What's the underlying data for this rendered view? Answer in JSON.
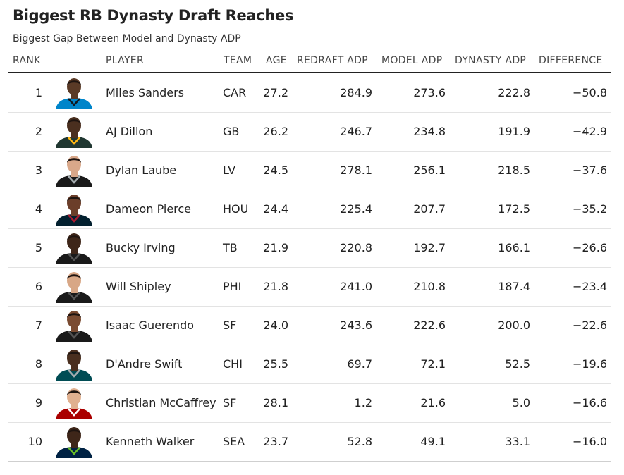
{
  "chart_data": {
    "type": "table",
    "title": "Biggest RB Dynasty Draft Reaches",
    "subtitle": "Biggest Gap Between Model and Dynasty ADP",
    "columns": [
      "RANK",
      "PLAYER",
      "TEAM",
      "AGE",
      "REDRAFT ADP",
      "MODEL ADP",
      "DYNASTY ADP",
      "DIFFERENCE"
    ],
    "rows": [
      {
        "rank": "1",
        "player": "Miles Sanders",
        "team": "CAR",
        "age": "27.2",
        "redraft_adp": "284.9",
        "model_adp": "273.6",
        "dynasty_adp": "222.8",
        "difference": "−50.8",
        "jersey_color": "#0085CA",
        "accent_color": "#101820",
        "skin_color": "#5a3a26"
      },
      {
        "rank": "2",
        "player": "AJ Dillon",
        "team": "GB",
        "age": "26.2",
        "redraft_adp": "246.7",
        "model_adp": "234.8",
        "dynasty_adp": "191.9",
        "difference": "−42.9",
        "jersey_color": "#203731",
        "accent_color": "#FFB612",
        "skin_color": "#4a2f1f"
      },
      {
        "rank": "3",
        "player": "Dylan Laube",
        "team": "LV",
        "age": "24.5",
        "redraft_adp": "278.1",
        "model_adp": "256.1",
        "dynasty_adp": "218.5",
        "difference": "−37.6",
        "jersey_color": "#1a1a1a",
        "accent_color": "#A5ACAF",
        "skin_color": "#d9a88a"
      },
      {
        "rank": "4",
        "player": "Dameon Pierce",
        "team": "HOU",
        "age": "24.4",
        "redraft_adp": "225.4",
        "model_adp": "207.7",
        "dynasty_adp": "172.5",
        "difference": "−35.2",
        "jersey_color": "#03202F",
        "accent_color": "#A71930",
        "skin_color": "#6b3e2a"
      },
      {
        "rank": "5",
        "player": "Bucky Irving",
        "team": "TB",
        "age": "21.9",
        "redraft_adp": "220.8",
        "model_adp": "192.7",
        "dynasty_adp": "166.1",
        "difference": "−26.6",
        "jersey_color": "#1a1a1a",
        "accent_color": "#555555",
        "skin_color": "#3e2619"
      },
      {
        "rank": "6",
        "player": "Will Shipley",
        "team": "PHI",
        "age": "21.8",
        "redraft_adp": "241.0",
        "model_adp": "210.8",
        "dynasty_adp": "187.4",
        "difference": "−23.4",
        "jersey_color": "#1a1a1a",
        "accent_color": "#555555",
        "skin_color": "#d8a786"
      },
      {
        "rank": "7",
        "player": "Isaac Guerendo",
        "team": "SF",
        "age": "24.0",
        "redraft_adp": "243.6",
        "model_adp": "222.6",
        "dynasty_adp": "200.0",
        "difference": "−22.6",
        "jersey_color": "#1a1a1a",
        "accent_color": "#555555",
        "skin_color": "#7a4b31"
      },
      {
        "rank": "8",
        "player": "D'Andre Swift",
        "team": "CHI",
        "age": "25.5",
        "redraft_adp": "69.7",
        "model_adp": "72.1",
        "dynasty_adp": "52.5",
        "difference": "−19.6",
        "jersey_color": "#004C54",
        "accent_color": "#A5ACAF",
        "skin_color": "#4a2f1f"
      },
      {
        "rank": "9",
        "player": "Christian McCaffrey",
        "team": "SF",
        "age": "28.1",
        "redraft_adp": "1.2",
        "model_adp": "21.6",
        "dynasty_adp": "5.0",
        "difference": "−16.6",
        "jersey_color": "#AA0000",
        "accent_color": "#ffffff",
        "skin_color": "#e0b08f"
      },
      {
        "rank": "10",
        "player": "Kenneth Walker",
        "team": "SEA",
        "age": "23.7",
        "redraft_adp": "52.8",
        "model_adp": "49.1",
        "dynasty_adp": "33.1",
        "difference": "−16.0",
        "jersey_color": "#002244",
        "accent_color": "#69BE28",
        "skin_color": "#3e2619"
      }
    ]
  }
}
